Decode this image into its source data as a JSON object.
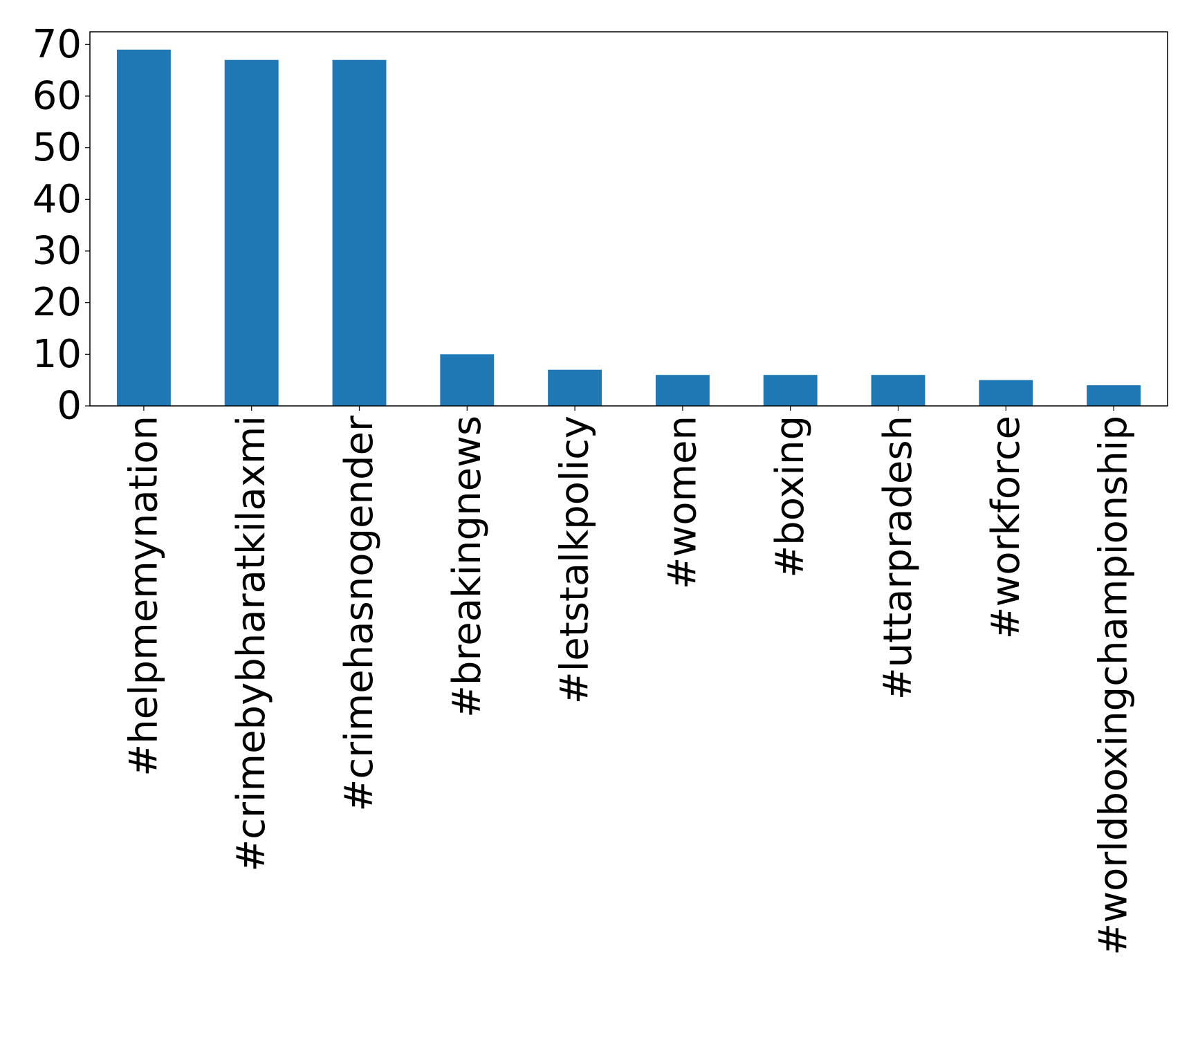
{
  "chart_data": {
    "type": "bar",
    "categories": [
      "#helpmemynation",
      "#crimebybharatkilaxmi",
      "#crimehasnogender",
      "#breakingnews",
      "#letstalkpolicy",
      "#women",
      "#boxing",
      "#uttarpradesh",
      "#workforce",
      "#worldboxingchampionship"
    ],
    "values": [
      69,
      67,
      67,
      10,
      7,
      6,
      6,
      6,
      5,
      4
    ],
    "yticks": [
      "0",
      "10",
      "20",
      "30",
      "40",
      "50",
      "60",
      "70"
    ],
    "ylim": [
      0,
      72.45
    ],
    "title": "",
    "xlabel": "",
    "ylabel": "",
    "grid": false,
    "legend": "none",
    "bar_color": "#1f77b4"
  }
}
